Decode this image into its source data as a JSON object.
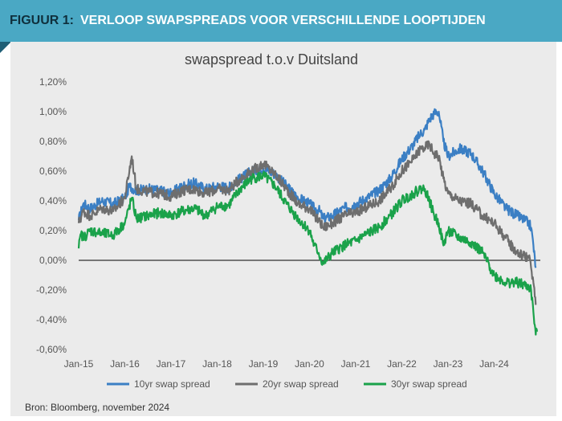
{
  "header": {
    "figure_label": "FIGUUR 1:",
    "title": "VERLOOP SWAPSPREADS VOOR VERSCHILLENDE LOOPTIJDEN"
  },
  "source": "Bron: Bloomberg, november 2024",
  "colors": {
    "header_bg": "#4aa8c4",
    "panel_bg": "#ebebeb",
    "series_10yr": "#3b7fc4",
    "series_20yr": "#6e6e6e",
    "series_30yr": "#1aa24a"
  },
  "chart_data": {
    "type": "line",
    "title": "swapspread t.o.v Duitsland",
    "xlabel": "",
    "ylabel": "",
    "x_tick_labels": [
      "Jan-15",
      "Jan-16",
      "Jan-17",
      "Jan-18",
      "Jan-19",
      "Jan-20",
      "Jan-21",
      "Jan-22",
      "Jan-23",
      "Jan-24"
    ],
    "y_tick_labels": [
      "1,20%",
      "1,00%",
      "0,80%",
      "0,60%",
      "0,40%",
      "0,20%",
      "0,00%",
      "-0,20%",
      "-0,40%",
      "-0,60%"
    ],
    "ylim": [
      -0.6,
      1.2
    ],
    "xlim": [
      2015.0,
      2025.0
    ],
    "grid": false,
    "legend_position": "bottom",
    "series": [
      {
        "name": "10yr swap spread",
        "x": [
          2015.0,
          2015.1,
          2015.25,
          2015.5,
          2015.75,
          2016.0,
          2016.1,
          2016.25,
          2016.5,
          2016.75,
          2017.0,
          2017.25,
          2017.5,
          2017.75,
          2018.0,
          2018.25,
          2018.5,
          2018.75,
          2019.0,
          2019.25,
          2019.5,
          2019.75,
          2020.0,
          2020.1,
          2020.2,
          2020.3,
          2020.5,
          2020.75,
          2021.0,
          2021.25,
          2021.5,
          2021.75,
          2022.0,
          2022.25,
          2022.4,
          2022.5,
          2022.6,
          2022.7,
          2022.8,
          2022.9,
          2023.0,
          2023.25,
          2023.5,
          2023.75,
          2024.0,
          2024.25,
          2024.5,
          2024.75,
          2024.8,
          2024.85,
          2024.9
        ],
        "values": [
          0.27,
          0.38,
          0.35,
          0.4,
          0.38,
          0.42,
          0.5,
          0.47,
          0.48,
          0.47,
          0.45,
          0.5,
          0.52,
          0.48,
          0.5,
          0.49,
          0.55,
          0.6,
          0.62,
          0.58,
          0.5,
          0.42,
          0.38,
          0.35,
          0.34,
          0.28,
          0.3,
          0.35,
          0.38,
          0.42,
          0.47,
          0.55,
          0.68,
          0.78,
          0.85,
          0.88,
          0.95,
          0.99,
          1.0,
          0.8,
          0.7,
          0.75,
          0.72,
          0.6,
          0.45,
          0.35,
          0.3,
          0.25,
          0.22,
          0.1,
          -0.05
        ]
      },
      {
        "name": "20yr swap spread",
        "x": [
          2015.0,
          2015.1,
          2015.25,
          2015.5,
          2015.75,
          2016.0,
          2016.15,
          2016.25,
          2016.5,
          2016.75,
          2017.0,
          2017.25,
          2017.5,
          2017.75,
          2018.0,
          2018.25,
          2018.5,
          2018.75,
          2019.0,
          2019.25,
          2019.5,
          2019.75,
          2020.0,
          2020.1,
          2020.2,
          2020.3,
          2020.5,
          2020.75,
          2021.0,
          2021.25,
          2021.5,
          2021.75,
          2022.0,
          2022.25,
          2022.4,
          2022.5,
          2022.6,
          2022.7,
          2022.8,
          2022.9,
          2023.0,
          2023.25,
          2023.5,
          2023.75,
          2024.0,
          2024.25,
          2024.5,
          2024.75,
          2024.8,
          2024.85,
          2024.9
        ],
        "values": [
          0.25,
          0.33,
          0.3,
          0.35,
          0.33,
          0.42,
          0.7,
          0.48,
          0.46,
          0.45,
          0.43,
          0.47,
          0.48,
          0.45,
          0.48,
          0.47,
          0.55,
          0.6,
          0.65,
          0.58,
          0.48,
          0.38,
          0.35,
          0.3,
          0.27,
          0.22,
          0.25,
          0.3,
          0.32,
          0.36,
          0.4,
          0.48,
          0.6,
          0.68,
          0.75,
          0.76,
          0.78,
          0.72,
          0.7,
          0.55,
          0.45,
          0.4,
          0.38,
          0.3,
          0.25,
          0.15,
          0.05,
          0.02,
          -0.05,
          -0.15,
          -0.3
        ]
      },
      {
        "name": "30yr swap spread",
        "x": [
          2015.0,
          2015.05,
          2015.1,
          2015.25,
          2015.5,
          2015.75,
          2016.0,
          2016.15,
          2016.25,
          2016.5,
          2016.75,
          2017.0,
          2017.25,
          2017.5,
          2017.75,
          2018.0,
          2018.25,
          2018.5,
          2018.75,
          2019.0,
          2019.25,
          2019.5,
          2019.75,
          2020.0,
          2020.1,
          2020.2,
          2020.25,
          2020.3,
          2020.5,
          2020.75,
          2021.0,
          2021.25,
          2021.5,
          2021.75,
          2022.0,
          2022.25,
          2022.4,
          2022.5,
          2022.6,
          2022.7,
          2022.8,
          2022.9,
          2023.0,
          2023.25,
          2023.5,
          2023.75,
          2024.0,
          2024.25,
          2024.5,
          2024.75,
          2024.8,
          2024.85,
          2024.9,
          2024.93
        ],
        "values": [
          0.08,
          0.18,
          0.15,
          0.2,
          0.18,
          0.17,
          0.25,
          0.42,
          0.28,
          0.3,
          0.32,
          0.3,
          0.33,
          0.35,
          0.3,
          0.36,
          0.37,
          0.48,
          0.55,
          0.57,
          0.5,
          0.38,
          0.28,
          0.2,
          0.1,
          0.05,
          0.0,
          -0.02,
          0.05,
          0.1,
          0.13,
          0.18,
          0.22,
          0.3,
          0.4,
          0.45,
          0.48,
          0.48,
          0.4,
          0.3,
          0.25,
          0.1,
          0.2,
          0.15,
          0.12,
          0.05,
          -0.1,
          -0.15,
          -0.15,
          -0.18,
          -0.2,
          -0.35,
          -0.5,
          -0.48
        ]
      }
    ]
  }
}
